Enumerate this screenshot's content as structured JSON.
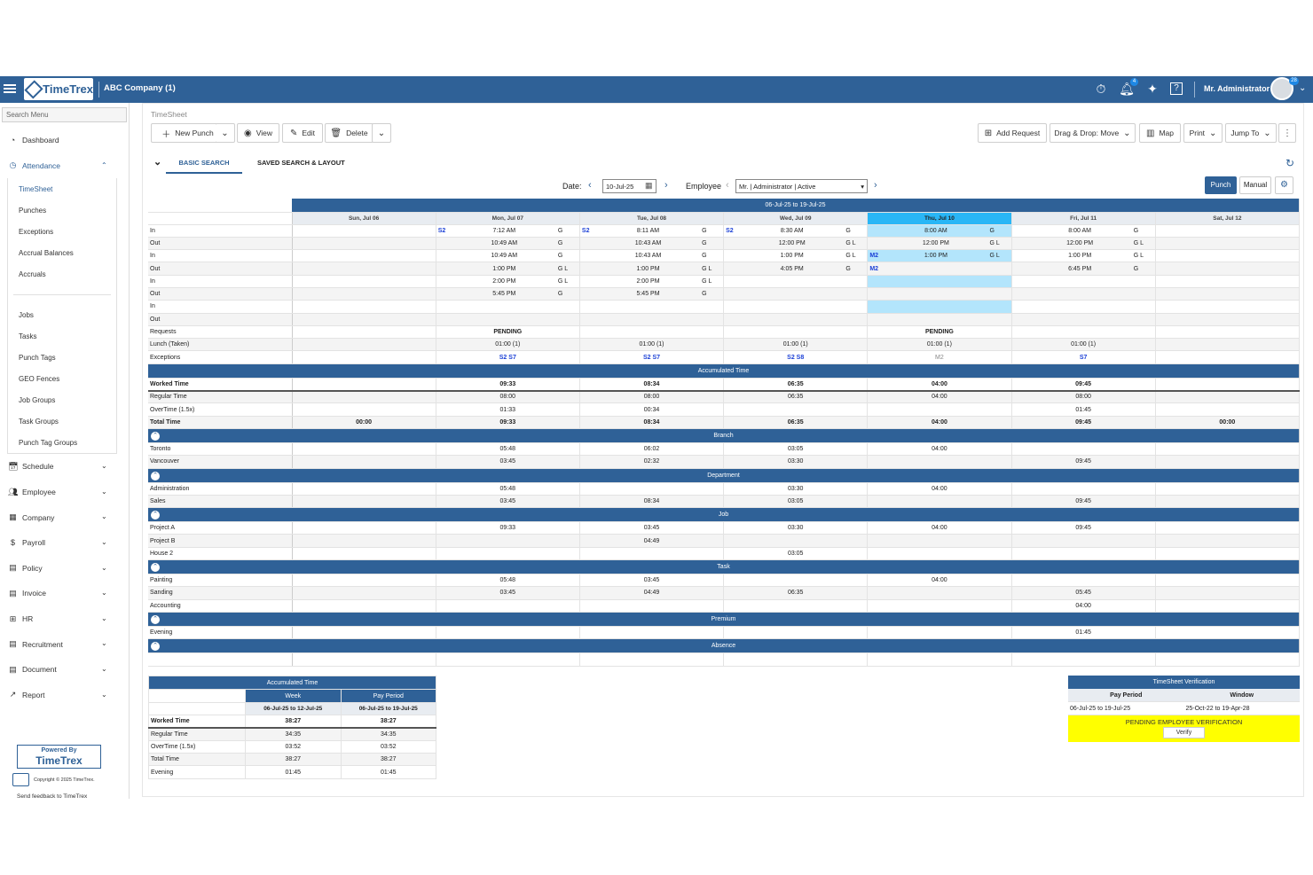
{
  "app": {
    "logo": "TimeTrex",
    "company": "ABC Company (1)",
    "user": "Mr. Administrator",
    "notif_count": "4",
    "avatar_count": "28"
  },
  "sidebar": {
    "search_placeholder": "Search Menu",
    "items_top": [
      {
        "label": "Dashboard",
        "icon": "dashboard-icon"
      },
      {
        "label": "Attendance",
        "icon": "clock-icon"
      }
    ],
    "attendance_sub": [
      "TimeSheet",
      "Punches",
      "Exceptions",
      "Accrual Balances",
      "Accruals"
    ],
    "attendance_sub2": [
      "Jobs",
      "Tasks",
      "Punch Tags",
      "GEO Fences",
      "Job Groups",
      "Task Groups",
      "Punch Tag Groups"
    ],
    "items_bottom": [
      {
        "label": "Schedule"
      },
      {
        "label": "Employee"
      },
      {
        "label": "Company"
      },
      {
        "label": "Payroll"
      },
      {
        "label": "Policy"
      },
      {
        "label": "Invoice"
      },
      {
        "label": "HR"
      },
      {
        "label": "Recruitment"
      },
      {
        "label": "Document"
      },
      {
        "label": "Report"
      }
    ],
    "powered_by": "Powered By",
    "powered_brand": "TimeTrex",
    "copyright": "Copyright © 2025 TimeTrex.",
    "feedback": "Send feedback to TimeTrex"
  },
  "main": {
    "title": "TimeSheet",
    "toolbar": {
      "new_punch": "New Punch",
      "view": "View",
      "edit": "Edit",
      "delete": "Delete",
      "add_request": "Add Request",
      "drag_drop": "Drag & Drop: Move",
      "map": "Map",
      "print": "Print",
      "jump_to": "Jump To"
    },
    "tabs": [
      "BASIC SEARCH",
      "SAVED SEARCH & LAYOUT"
    ],
    "filters": {
      "date_label": "Date:",
      "date_value": "10-Jul-25",
      "employee_label": "Employee",
      "employee_value": "Mr. | Administrator | Active",
      "punch": "Punch",
      "manual": "Manual"
    }
  },
  "grid": {
    "period": "06-Jul-25 to 19-Jul-25",
    "days": [
      "Sun, Jul 06",
      "Mon, Jul 07",
      "Tue, Jul 08",
      "Wed, Jul 09",
      "Thu, Jul 10",
      "Fri, Jul 11",
      "Sat, Jul 12"
    ],
    "today_index": 4,
    "punch_rows": [
      {
        "label": "In",
        "cells": [
          null,
          {
            "b": "S2",
            "t": "7:12 AM",
            "f": "G"
          },
          {
            "b": "S2",
            "t": "8:11 AM",
            "f": "G"
          },
          {
            "b": "S2",
            "t": "8:30 AM",
            "f": "G"
          },
          {
            "b": "",
            "t": "8:00 AM",
            "f": "G"
          },
          {
            "b": "",
            "t": "8:00 AM",
            "f": "G"
          },
          null
        ]
      },
      {
        "label": "Out",
        "cells": [
          null,
          {
            "b": "",
            "t": "10:49 AM",
            "f": "G"
          },
          {
            "b": "",
            "t": "10:43 AM",
            "f": "G"
          },
          {
            "b": "",
            "t": "12:00 PM",
            "f": "G L"
          },
          {
            "b": "",
            "t": "12:00 PM",
            "f": "G L"
          },
          {
            "b": "",
            "t": "12:00 PM",
            "f": "G L"
          },
          null
        ]
      },
      {
        "label": "In",
        "cells": [
          null,
          {
            "b": "",
            "t": "10:49 AM",
            "f": "G"
          },
          {
            "b": "",
            "t": "10:43 AM",
            "f": "G"
          },
          {
            "b": "",
            "t": "1:00 PM",
            "f": "G L"
          },
          {
            "b": "M2",
            "t": "1:00 PM",
            "f": "G L"
          },
          {
            "b": "",
            "t": "1:00 PM",
            "f": "G L"
          },
          null
        ]
      },
      {
        "label": "Out",
        "cells": [
          null,
          {
            "b": "",
            "t": "1:00 PM",
            "f": "G L"
          },
          {
            "b": "",
            "t": "1:00 PM",
            "f": "G L"
          },
          {
            "b": "",
            "t": "4:05 PM",
            "f": "G"
          },
          {
            "b": "M2",
            "t": "",
            "f": ""
          },
          {
            "b": "",
            "t": "6:45 PM",
            "f": "G"
          },
          null
        ]
      },
      {
        "label": "In",
        "cells": [
          null,
          {
            "b": "",
            "t": "2:00 PM",
            "f": "G L"
          },
          {
            "b": "",
            "t": "2:00 PM",
            "f": "G L"
          },
          null,
          null,
          null,
          null
        ]
      },
      {
        "label": "Out",
        "cells": [
          null,
          {
            "b": "",
            "t": "5:45 PM",
            "f": "G"
          },
          {
            "b": "",
            "t": "5:45 PM",
            "f": "G"
          },
          null,
          null,
          null,
          null
        ]
      },
      {
        "label": "In",
        "cells": [
          null,
          null,
          null,
          null,
          null,
          null,
          null
        ]
      },
      {
        "label": "Out",
        "cells": [
          null,
          null,
          null,
          null,
          null,
          null,
          null
        ]
      }
    ],
    "requests": {
      "label": "Requests",
      "cells": [
        "",
        "PENDING",
        "",
        "",
        "PENDING",
        "",
        ""
      ]
    },
    "lunch": {
      "label": "Lunch (Taken)",
      "cells": [
        "",
        "01:00 (1)",
        "01:00 (1)",
        "01:00 (1)",
        "01:00 (1)",
        "01:00 (1)",
        ""
      ]
    },
    "exceptions": {
      "label": "Exceptions",
      "cells": [
        "",
        "S2 S7",
        "S2 S7",
        "S2 S8",
        "M2",
        "S7",
        ""
      ]
    },
    "sections": [
      {
        "title": "Accumulated Time",
        "collapse": false,
        "rows": [
          {
            "label": "Worked Time",
            "bold": true,
            "uline": true,
            "cells": [
              "",
              "09:33",
              "08:34",
              "06:35",
              "04:00",
              "09:45",
              ""
            ]
          },
          {
            "label": "Regular Time",
            "cells": [
              "",
              "08:00",
              "08:00",
              "06:35",
              "04:00",
              "08:00",
              ""
            ]
          },
          {
            "label": "OverTime (1.5x)",
            "cells": [
              "",
              "01:33",
              "00:34",
              "",
              "",
              "01:45",
              ""
            ]
          },
          {
            "label": "Total Time",
            "bold": true,
            "cells": [
              "00:00",
              "09:33",
              "08:34",
              "06:35",
              "04:00",
              "09:45",
              "00:00"
            ]
          }
        ]
      },
      {
        "title": "Branch",
        "collapse": true,
        "rows": [
          {
            "label": "Toronto",
            "cells": [
              "",
              "05:48",
              "06:02",
              "03:05",
              "04:00",
              "",
              ""
            ]
          },
          {
            "label": "Vancouver",
            "cells": [
              "",
              "03:45",
              "02:32",
              "03:30",
              "",
              "09:45",
              ""
            ]
          }
        ]
      },
      {
        "title": "Department",
        "collapse": true,
        "rows": [
          {
            "label": "Administration",
            "cells": [
              "",
              "05:48",
              "",
              "03:30",
              "04:00",
              "",
              ""
            ]
          },
          {
            "label": "Sales",
            "cells": [
              "",
              "03:45",
              "08:34",
              "03:05",
              "",
              "09:45",
              ""
            ]
          }
        ]
      },
      {
        "title": "Job",
        "collapse": true,
        "rows": [
          {
            "label": "Project A",
            "cells": [
              "",
              "09:33",
              "03:45",
              "03:30",
              "04:00",
              "09:45",
              ""
            ]
          },
          {
            "label": "Project B",
            "cells": [
              "",
              "",
              "04:49",
              "",
              "",
              "",
              ""
            ]
          },
          {
            "label": "House 2",
            "cells": [
              "",
              "",
              "",
              "03:05",
              "",
              "",
              ""
            ]
          }
        ]
      },
      {
        "title": "Task",
        "collapse": true,
        "rows": [
          {
            "label": "Painting",
            "cells": [
              "",
              "05:48",
              "03:45",
              "",
              "04:00",
              "",
              ""
            ]
          },
          {
            "label": "Sanding",
            "cells": [
              "",
              "03:45",
              "04:49",
              "06:35",
              "",
              "05:45",
              ""
            ]
          },
          {
            "label": "Accounting",
            "cells": [
              "",
              "",
              "",
              "",
              "",
              "04:00",
              ""
            ]
          }
        ]
      },
      {
        "title": "Premium",
        "collapse": true,
        "rows": [
          {
            "label": "Evening",
            "cells": [
              "",
              "",
              "",
              "",
              "",
              "01:45",
              ""
            ]
          }
        ]
      },
      {
        "title": "Absence",
        "collapse": true,
        "rows": [
          {
            "label": "",
            "cells": [
              "",
              "",
              "",
              "",
              "",
              "",
              ""
            ]
          }
        ]
      }
    ]
  },
  "accumulated": {
    "title": "Accumulated Time",
    "cols": [
      "Week",
      "Pay Period"
    ],
    "ranges": [
      "06-Jul-25 to 12-Jul-25",
      "06-Jul-25 to 19-Jul-25"
    ],
    "rows": [
      {
        "label": "Worked Time",
        "vals": [
          "38:27",
          "38:27"
        ],
        "bold": true
      },
      {
        "label": "Regular Time",
        "vals": [
          "34:35",
          "34:35"
        ]
      },
      {
        "label": "OverTime (1.5x)",
        "vals": [
          "03:52",
          "03:52"
        ]
      },
      {
        "label": "Total Time",
        "vals": [
          "38:27",
          "38:27"
        ]
      },
      {
        "label": "Evening",
        "vals": [
          "01:45",
          "01:45"
        ]
      }
    ]
  },
  "verification": {
    "title": "TimeSheet Verification",
    "cols": [
      "Pay Period",
      "Window"
    ],
    "period": "06-Jul-25 to 19-Jul-25",
    "window": "25-Oct-22 to 19-Apr-28",
    "status": "PENDING EMPLOYEE VERIFICATION",
    "button": "Verify"
  }
}
